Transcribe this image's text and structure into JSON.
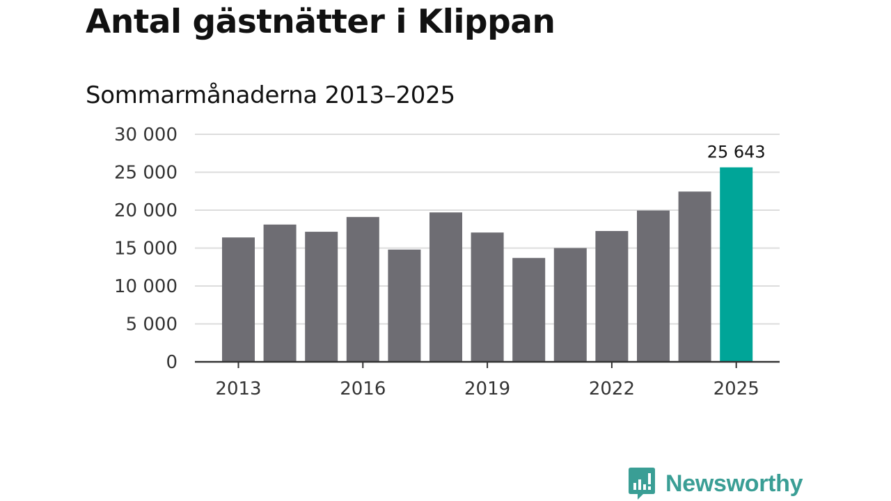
{
  "colors": {
    "bar": "#6e6d73",
    "highlight": "#00a598",
    "grid": "#dcdcdc",
    "axis": "#333333",
    "brand": "#3a9e95"
  },
  "chart_data": {
    "type": "bar",
    "title": "Antal gästnätter i Klippan",
    "subtitle": "Sommarmånaderna 2013–2025",
    "categories": [
      "2013",
      "2014",
      "2015",
      "2016",
      "2017",
      "2018",
      "2019",
      "2020",
      "2021",
      "2022",
      "2023",
      "2024",
      "2025"
    ],
    "values": [
      16400,
      18100,
      17150,
      19100,
      14800,
      19700,
      17050,
      13700,
      15000,
      17250,
      19950,
      22450,
      25643
    ],
    "ylim": [
      0,
      30000
    ],
    "yticks": [
      0,
      5000,
      10000,
      15000,
      20000,
      25000,
      30000
    ],
    "ytick_labels": [
      "0",
      "5 000",
      "10 000",
      "15 000",
      "20 000",
      "25 000",
      "30 000"
    ],
    "xtick_labels": [
      "2013",
      "2016",
      "2019",
      "2022",
      "2025"
    ],
    "highlight_index": 12,
    "data_label": "25 643",
    "grid": true,
    "xlabel": "",
    "ylabel": ""
  },
  "brand": {
    "name": "Newsworthy",
    "icon": "newsworthy-logo-icon"
  }
}
